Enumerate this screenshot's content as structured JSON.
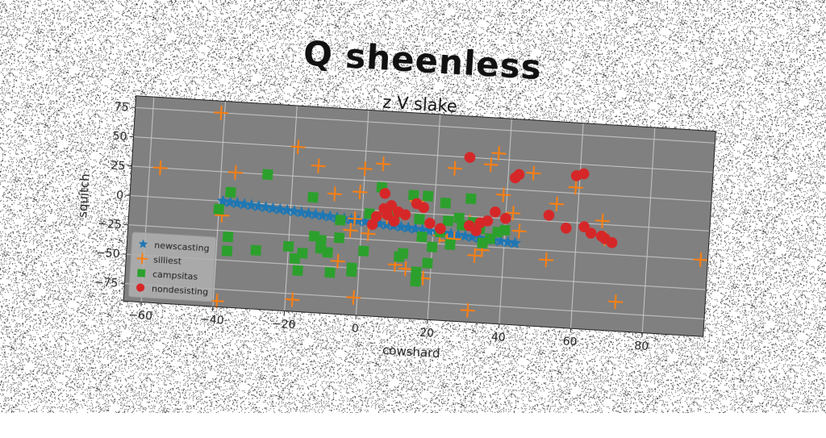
{
  "suptitle": "Q sheenless",
  "chart_data": {
    "type": "scatter",
    "title": "z V slake",
    "xlabel": "cowshard",
    "ylabel": "squitch",
    "xlim": [
      -65,
      97
    ],
    "ylim": [
      -90,
      85
    ],
    "xticks": [
      -60,
      -40,
      -20,
      0,
      20,
      40,
      60,
      80
    ],
    "yticks": [
      -75,
      -50,
      -25,
      0,
      25,
      50,
      75
    ],
    "grid": true,
    "legend_position": "lower-left",
    "plot_background": "#808080",
    "series": [
      {
        "name": "newscasting",
        "marker": "star",
        "color": "#1f77b4",
        "points": [
          [
            -39,
            0
          ],
          [
            -37,
            -0.5
          ],
          [
            -35,
            -1
          ],
          [
            -33,
            -1.5
          ],
          [
            -31,
            -2
          ],
          [
            -29,
            -2.5
          ],
          [
            -27,
            -3
          ],
          [
            -25,
            -3.5
          ],
          [
            -23,
            -4
          ],
          [
            -21,
            -4.5
          ],
          [
            -19,
            -5
          ],
          [
            -17,
            -5.5
          ],
          [
            -15,
            -6
          ],
          [
            -13,
            -6.5
          ],
          [
            -11,
            -7
          ],
          [
            -9,
            -7.5
          ],
          [
            -7,
            -8
          ],
          [
            -5,
            -8.5
          ],
          [
            -3,
            -9
          ],
          [
            -1,
            -9.5
          ],
          [
            1,
            -10
          ],
          [
            3,
            -10.5
          ],
          [
            5,
            -11
          ],
          [
            7,
            -11.5
          ],
          [
            9,
            -12
          ],
          [
            11,
            -12.5
          ],
          [
            13,
            -13
          ],
          [
            15,
            -13.5
          ],
          [
            17,
            -14
          ],
          [
            19,
            -14.5
          ],
          [
            21,
            -15
          ],
          [
            23,
            -15.5
          ],
          [
            25,
            -16
          ],
          [
            27,
            -16.5
          ],
          [
            29,
            -17
          ],
          [
            31,
            -17.5
          ],
          [
            33,
            -18
          ],
          [
            35,
            -18.5
          ],
          [
            37,
            -19
          ],
          [
            39,
            -19.5
          ],
          [
            41,
            -20
          ],
          [
            43,
            -20.5
          ]
        ]
      },
      {
        "name": "silliest",
        "marker": "plus",
        "color": "#ff7f0e",
        "points": [
          [
            -57,
            25
          ],
          [
            -41,
            75
          ],
          [
            -39,
            -12
          ],
          [
            -39,
            -85
          ],
          [
            -36,
            25
          ],
          [
            -19,
            50
          ],
          [
            -18,
            -80
          ],
          [
            -13,
            35
          ],
          [
            -8,
            12
          ],
          [
            -6,
            -45
          ],
          [
            -3,
            -18
          ],
          [
            -2,
            -8
          ],
          [
            -1,
            15
          ],
          [
            -1,
            -75
          ],
          [
            0,
            35
          ],
          [
            2,
            -20
          ],
          [
            5,
            40
          ],
          [
            7,
            -5
          ],
          [
            10,
            -45
          ],
          [
            13,
            -48
          ],
          [
            15,
            10
          ],
          [
            18,
            -55
          ],
          [
            22,
            -18
          ],
          [
            24,
            -22
          ],
          [
            25,
            40
          ],
          [
            26,
            -20
          ],
          [
            30,
            -5
          ],
          [
            31,
            -80
          ],
          [
            32,
            -33
          ],
          [
            34,
            -28
          ],
          [
            35,
            45
          ],
          [
            37,
            55
          ],
          [
            39,
            20
          ],
          [
            42,
            5
          ],
          [
            44,
            -10
          ],
          [
            47,
            40
          ],
          [
            52,
            -33
          ],
          [
            54,
            15
          ],
          [
            59,
            30
          ],
          [
            67,
            3
          ],
          [
            68,
            -12
          ],
          [
            72,
            -65
          ],
          [
            95,
            -25
          ]
        ]
      },
      {
        "name": "campsitas",
        "marker": "square",
        "color": "#2ca02c",
        "points": [
          [
            -40,
            -7
          ],
          [
            -37,
            8
          ],
          [
            -37,
            -30
          ],
          [
            -37,
            -42
          ],
          [
            -29,
            -40
          ],
          [
            -27,
            25
          ],
          [
            -20,
            -35
          ],
          [
            -18,
            -45
          ],
          [
            -17,
            -55
          ],
          [
            -16,
            -40
          ],
          [
            -14,
            8
          ],
          [
            -13,
            -25
          ],
          [
            -11,
            -28
          ],
          [
            -11,
            -35
          ],
          [
            -9,
            -38
          ],
          [
            -8,
            -55
          ],
          [
            -6,
            -10
          ],
          [
            -6,
            -25
          ],
          [
            -2,
            -53
          ],
          [
            -2,
            -50
          ],
          [
            1,
            -35
          ],
          [
            2,
            -3
          ],
          [
            5,
            20
          ],
          [
            7,
            0
          ],
          [
            9,
            -5
          ],
          [
            11,
            -38
          ],
          [
            12,
            -35
          ],
          [
            14,
            15
          ],
          [
            16,
            -5
          ],
          [
            16,
            -50
          ],
          [
            16,
            -58
          ],
          [
            17,
            -20
          ],
          [
            18,
            15
          ],
          [
            19,
            -42
          ],
          [
            20,
            -28
          ],
          [
            22,
            -15
          ],
          [
            23,
            10
          ],
          [
            24,
            -5
          ],
          [
            25,
            -25
          ],
          [
            27,
            -2
          ],
          [
            28,
            -8
          ],
          [
            30,
            15
          ],
          [
            31,
            -5
          ],
          [
            33,
            -10
          ],
          [
            34,
            -22
          ],
          [
            36,
            -18
          ],
          [
            38,
            -12
          ],
          [
            40,
            -10
          ]
        ]
      },
      {
        "name": "nondesisting",
        "marker": "circle",
        "color": "#d62728",
        "points": [
          [
            3,
            -12
          ],
          [
            4,
            -5
          ],
          [
            6,
            15
          ],
          [
            6,
            2
          ],
          [
            7,
            -3
          ],
          [
            8,
            5
          ],
          [
            9,
            -8
          ],
          [
            10,
            0
          ],
          [
            12,
            -2
          ],
          [
            15,
            8
          ],
          [
            17,
            5
          ],
          [
            19,
            -8
          ],
          [
            22,
            -12
          ],
          [
            29,
            50
          ],
          [
            30,
            -8
          ],
          [
            32,
            -12
          ],
          [
            33,
            -5
          ],
          [
            35,
            -3
          ],
          [
            37,
            5
          ],
          [
            40,
            0
          ],
          [
            42,
            35
          ],
          [
            43,
            38
          ],
          [
            52,
            5
          ],
          [
            57,
            -5
          ],
          [
            59,
            40
          ],
          [
            61,
            42
          ],
          [
            62,
            -3
          ],
          [
            64,
            -8
          ],
          [
            67,
            -10
          ],
          [
            68,
            -12
          ],
          [
            70,
            -15
          ]
        ]
      }
    ]
  }
}
